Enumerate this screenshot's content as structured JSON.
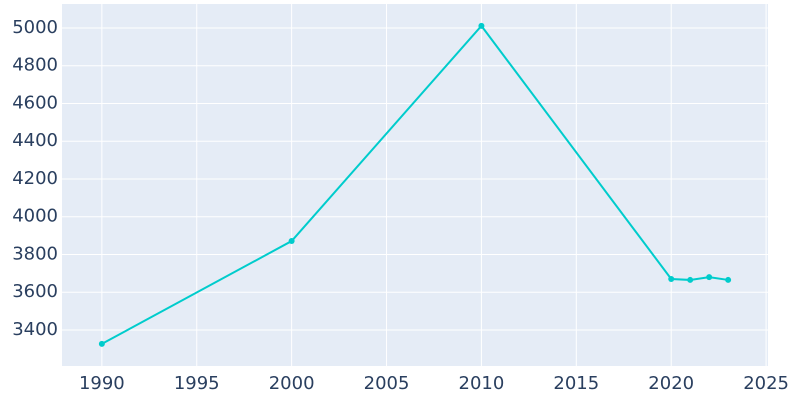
{
  "chart_data": {
    "type": "line",
    "x": [
      1990,
      2000,
      2010,
      2020,
      2021,
      2022,
      2023
    ],
    "series": [
      {
        "color": "#00cccc",
        "values": [
          3326,
          3871,
          5011,
          3670,
          3665,
          3680,
          3665
        ]
      }
    ],
    "xlim": [
      1987.9,
      2025.1
    ],
    "xticks": [
      1990,
      1995,
      2000,
      2005,
      2010,
      2015,
      2020,
      2025
    ],
    "ylim": [
      3209,
      5127
    ],
    "yticks": [
      3400,
      3600,
      3800,
      4000,
      4200,
      4400,
      4600,
      4800,
      5000
    ],
    "grid": true
  }
}
